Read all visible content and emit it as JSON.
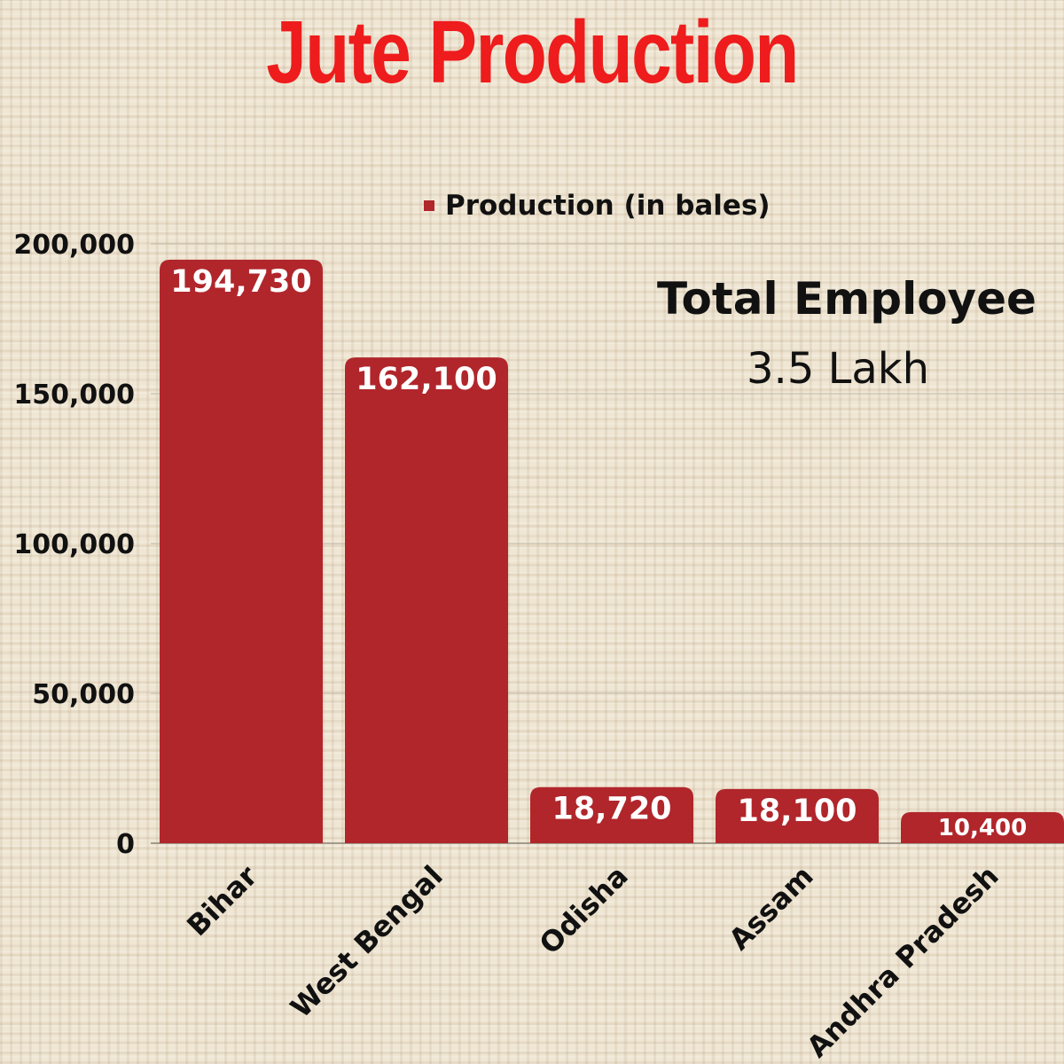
{
  "chart_data": {
    "type": "bar",
    "title": "Jute Production",
    "categories": [
      "Bihar",
      "West Bengal",
      "Odisha",
      "Assam",
      "Andhra Pradesh"
    ],
    "series": [
      {
        "name": "Production (in bales)",
        "values": [
          194730,
          162100,
          18720,
          18100,
          10400
        ],
        "value_labels": [
          "194,730",
          "162,100",
          "18,720",
          "18,100",
          "10,400"
        ]
      }
    ],
    "y_ticks": [
      0,
      50000,
      100000,
      150000,
      200000
    ],
    "y_tick_labels": [
      "0",
      "50,000",
      "100,000",
      "150,000",
      "200,000"
    ],
    "ylim": [
      0,
      200000
    ],
    "grid": true,
    "legend_position": "top",
    "bar_color": "#b0262b",
    "annotation": {
      "heading": "Total Employee",
      "value": "3.5 Lakh"
    }
  }
}
